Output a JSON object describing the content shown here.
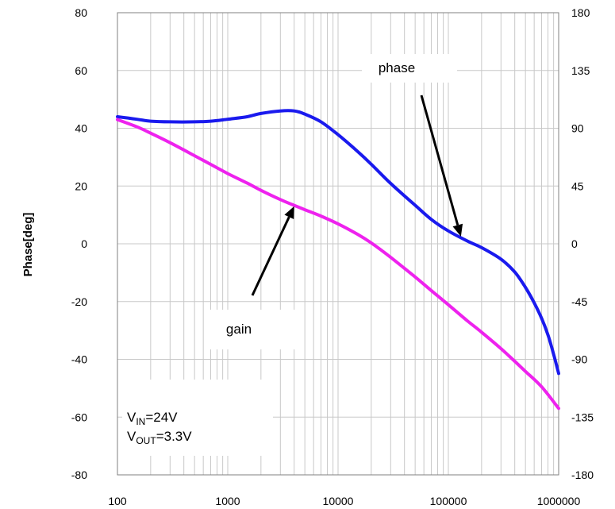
{
  "chart_data": {
    "type": "line",
    "title": "",
    "xlabel": "",
    "ylabel": "Phase[deg]",
    "x_scale": "log",
    "xlim": [
      100,
      1000000
    ],
    "ylim_left": [
      -80,
      80
    ],
    "ylim_right": [
      -180,
      180
    ],
    "x_ticks": [
      "100",
      "1000",
      "10000",
      "100000",
      "1000000"
    ],
    "y_ticks_left": [
      "80",
      "60",
      "40",
      "20",
      "0",
      "-20",
      "-40",
      "-60",
      "-80"
    ],
    "y_ticks_right": [
      "180",
      "135",
      "90",
      "45",
      "0",
      "-45",
      "-90",
      "-135",
      "-180"
    ],
    "grid": true,
    "colors": {
      "phase": "#1a1aee",
      "gain": "#ee22ee",
      "grid": "#c8c8c8",
      "axis": "#808080"
    },
    "series": [
      {
        "name": "phase",
        "axis": "right",
        "x": [
          100,
          150,
          200,
          300,
          500,
          700,
          1000,
          1500,
          2000,
          3000,
          4000,
          5000,
          7000,
          10000,
          15000,
          20000,
          30000,
          50000,
          70000,
          100000,
          150000,
          200000,
          300000,
          400000,
          500000,
          600000,
          700000,
          800000,
          900000,
          1000000
        ],
        "values": [
          99,
          97,
          95.5,
          95,
          95,
          95.5,
          97,
          99,
          101.5,
          103.5,
          103.5,
          101,
          95,
          85,
          72,
          62,
          47,
          30,
          19,
          10,
          2,
          -3,
          -12,
          -22,
          -34,
          -46,
          -58,
          -71,
          -86,
          -101
        ]
      },
      {
        "name": "gain",
        "axis": "left",
        "x": [
          100,
          150,
          200,
          300,
          500,
          700,
          1000,
          1500,
          2000,
          3000,
          4000,
          5000,
          7000,
          10000,
          15000,
          20000,
          30000,
          50000,
          70000,
          100000,
          150000,
          200000,
          300000,
          400000,
          500000,
          700000,
          1000000
        ],
        "values": [
          43,
          40.5,
          38.3,
          35,
          30.5,
          27.5,
          24.3,
          21,
          18.5,
          15.3,
          13.3,
          11.8,
          9.6,
          6.9,
          3.3,
          0.3,
          -4.7,
          -11.5,
          -16.2,
          -21.1,
          -26.8,
          -30.6,
          -36.3,
          -40.7,
          -44.2,
          -49.5,
          -57
        ]
      }
    ],
    "annotations": [
      {
        "text": "phase",
        "arrow_to": {
          "x": 130000,
          "y_left": 2.5
        }
      },
      {
        "text": "gain",
        "arrow_to": {
          "x": 4000,
          "y_left": 13
        }
      }
    ],
    "conditions": [
      {
        "main": "V",
        "sub": "IN",
        "rest": "=24V"
      },
      {
        "main": "V",
        "sub": "OUT",
        "rest": "=3.3V"
      }
    ]
  }
}
